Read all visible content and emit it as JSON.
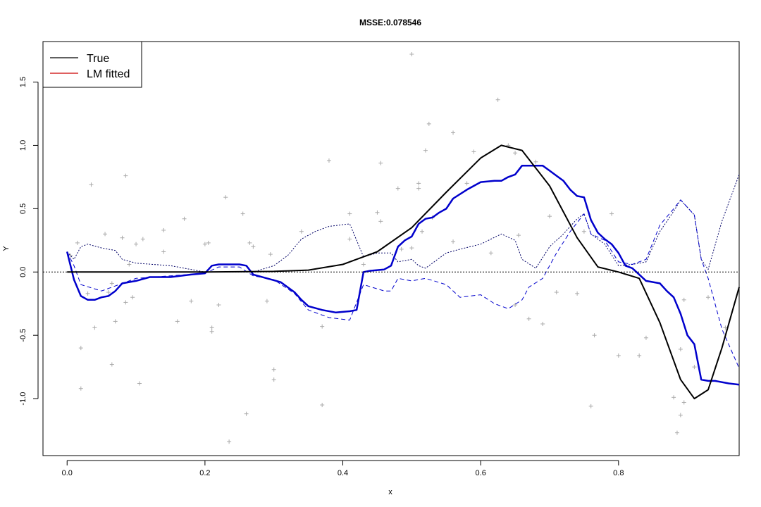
{
  "chart_data": {
    "type": "line",
    "title": "MSSE:0.078546",
    "xlabel": "x",
    "ylabel": "Y",
    "xlim": [
      -0.035,
      0.975
    ],
    "ylim": [
      -1.45,
      1.82
    ],
    "x_ticks": [
      0.0,
      0.2,
      0.4,
      0.6,
      0.8
    ],
    "x_tick_labels": [
      "0.0",
      "0.2",
      "0.4",
      "0.6",
      "0.8"
    ],
    "y_ticks": [
      -1.0,
      -0.5,
      0.0,
      0.5,
      1.0,
      1.5
    ],
    "y_tick_labels": [
      "-1.0",
      "-0.5",
      "0.0",
      "0.5",
      "1.0",
      "1.5"
    ],
    "grid": false,
    "reference_line_y": 0,
    "legend": {
      "position": "top-left",
      "entries": [
        {
          "label": "True",
          "color": "#000000"
        },
        {
          "label": "LM fitted",
          "color": "#cc0000"
        }
      ]
    },
    "series": [
      {
        "name": "True",
        "style": "solid",
        "color": "#000000",
        "width": 2,
        "points": [
          [
            0.0,
            0.0
          ],
          [
            0.1,
            0.0
          ],
          [
            0.2,
            0.0
          ],
          [
            0.3,
            0.005
          ],
          [
            0.35,
            0.015
          ],
          [
            0.4,
            0.06
          ],
          [
            0.45,
            0.16
          ],
          [
            0.5,
            0.35
          ],
          [
            0.55,
            0.63
          ],
          [
            0.6,
            0.9
          ],
          [
            0.63,
            1.0
          ],
          [
            0.66,
            0.96
          ],
          [
            0.7,
            0.68
          ],
          [
            0.74,
            0.27
          ],
          [
            0.77,
            0.04
          ],
          [
            0.8,
            0.0
          ],
          [
            0.83,
            -0.05
          ],
          [
            0.86,
            -0.4
          ],
          [
            0.89,
            -0.85
          ],
          [
            0.91,
            -1.0
          ],
          [
            0.93,
            -0.93
          ],
          [
            0.95,
            -0.6
          ],
          [
            0.975,
            -0.12
          ]
        ]
      },
      {
        "name": "",
        "style": "solid",
        "color": "#0000cc",
        "width": 2.5,
        "points": [
          [
            0.0,
            0.16
          ],
          [
            0.01,
            -0.06
          ],
          [
            0.02,
            -0.19
          ],
          [
            0.03,
            -0.22
          ],
          [
            0.04,
            -0.22
          ],
          [
            0.05,
            -0.2
          ],
          [
            0.06,
            -0.19
          ],
          [
            0.07,
            -0.15
          ],
          [
            0.08,
            -0.09
          ],
          [
            0.1,
            -0.07
          ],
          [
            0.12,
            -0.04
          ],
          [
            0.15,
            -0.04
          ],
          [
            0.18,
            -0.02
          ],
          [
            0.2,
            -0.01
          ],
          [
            0.21,
            0.05
          ],
          [
            0.22,
            0.06
          ],
          [
            0.25,
            0.06
          ],
          [
            0.26,
            0.05
          ],
          [
            0.27,
            -0.02
          ],
          [
            0.29,
            -0.05
          ],
          [
            0.31,
            -0.08
          ],
          [
            0.33,
            -0.16
          ],
          [
            0.34,
            -0.22
          ],
          [
            0.35,
            -0.27
          ],
          [
            0.37,
            -0.3
          ],
          [
            0.39,
            -0.32
          ],
          [
            0.41,
            -0.31
          ],
          [
            0.42,
            -0.3
          ],
          [
            0.43,
            0.0
          ],
          [
            0.44,
            0.01
          ],
          [
            0.46,
            0.02
          ],
          [
            0.47,
            0.05
          ],
          [
            0.48,
            0.2
          ],
          [
            0.49,
            0.25
          ],
          [
            0.5,
            0.28
          ],
          [
            0.51,
            0.38
          ],
          [
            0.52,
            0.42
          ],
          [
            0.53,
            0.43
          ],
          [
            0.54,
            0.47
          ],
          [
            0.55,
            0.5
          ],
          [
            0.56,
            0.58
          ],
          [
            0.58,
            0.65
          ],
          [
            0.6,
            0.71
          ],
          [
            0.62,
            0.72
          ],
          [
            0.63,
            0.72
          ],
          [
            0.64,
            0.75
          ],
          [
            0.65,
            0.77
          ],
          [
            0.66,
            0.84
          ],
          [
            0.67,
            0.84
          ],
          [
            0.69,
            0.84
          ],
          [
            0.7,
            0.8
          ],
          [
            0.71,
            0.76
          ],
          [
            0.72,
            0.72
          ],
          [
            0.73,
            0.65
          ],
          [
            0.74,
            0.6
          ],
          [
            0.75,
            0.59
          ],
          [
            0.76,
            0.41
          ],
          [
            0.77,
            0.31
          ],
          [
            0.78,
            0.26
          ],
          [
            0.79,
            0.22
          ],
          [
            0.8,
            0.15
          ],
          [
            0.81,
            0.05
          ],
          [
            0.82,
            0.03
          ],
          [
            0.83,
            -0.02
          ],
          [
            0.84,
            -0.07
          ],
          [
            0.86,
            -0.09
          ],
          [
            0.87,
            -0.15
          ],
          [
            0.88,
            -0.2
          ],
          [
            0.89,
            -0.33
          ],
          [
            0.9,
            -0.5
          ],
          [
            0.91,
            -0.57
          ],
          [
            0.92,
            -0.85
          ],
          [
            0.93,
            -0.86
          ],
          [
            0.94,
            -0.86
          ],
          [
            0.96,
            -0.88
          ],
          [
            0.975,
            -0.89
          ]
        ]
      },
      {
        "name": "",
        "style": "dashed",
        "color": "#0000cc",
        "width": 1,
        "points": [
          [
            0.0,
            0.16
          ],
          [
            0.01,
            0.05
          ],
          [
            0.02,
            -0.1
          ],
          [
            0.05,
            -0.15
          ],
          [
            0.1,
            -0.05
          ],
          [
            0.15,
            -0.03
          ],
          [
            0.2,
            -0.01
          ],
          [
            0.22,
            0.04
          ],
          [
            0.25,
            0.04
          ],
          [
            0.27,
            -0.03
          ],
          [
            0.3,
            -0.06
          ],
          [
            0.33,
            -0.17
          ],
          [
            0.35,
            -0.3
          ],
          [
            0.38,
            -0.36
          ],
          [
            0.41,
            -0.38
          ],
          [
            0.43,
            -0.1
          ],
          [
            0.46,
            -0.15
          ],
          [
            0.47,
            -0.15
          ],
          [
            0.48,
            -0.05
          ],
          [
            0.5,
            -0.07
          ],
          [
            0.52,
            -0.05
          ],
          [
            0.55,
            -0.1
          ],
          [
            0.57,
            -0.2
          ],
          [
            0.6,
            -0.18
          ],
          [
            0.62,
            -0.25
          ],
          [
            0.64,
            -0.29
          ],
          [
            0.66,
            -0.22
          ],
          [
            0.67,
            -0.12
          ],
          [
            0.69,
            -0.05
          ],
          [
            0.71,
            0.15
          ],
          [
            0.73,
            0.32
          ],
          [
            0.75,
            0.46
          ],
          [
            0.76,
            0.3
          ],
          [
            0.78,
            0.25
          ],
          [
            0.8,
            0.08
          ],
          [
            0.82,
            0.06
          ],
          [
            0.84,
            0.1
          ],
          [
            0.86,
            0.37
          ],
          [
            0.88,
            0.5
          ],
          [
            0.89,
            0.57
          ],
          [
            0.91,
            0.45
          ],
          [
            0.92,
            0.1
          ],
          [
            0.93,
            -0.05
          ],
          [
            0.95,
            -0.45
          ],
          [
            0.975,
            -0.76
          ]
        ]
      },
      {
        "name": "",
        "style": "dotted",
        "color": "#000066",
        "width": 1,
        "points": [
          [
            0.0,
            0.16
          ],
          [
            0.01,
            0.1
          ],
          [
            0.02,
            0.2
          ],
          [
            0.03,
            0.22
          ],
          [
            0.05,
            0.19
          ],
          [
            0.07,
            0.17
          ],
          [
            0.08,
            0.1
          ],
          [
            0.1,
            0.07
          ],
          [
            0.15,
            0.05
          ],
          [
            0.2,
            0.0
          ],
          [
            0.25,
            0.0
          ],
          [
            0.27,
            0.0
          ],
          [
            0.3,
            0.05
          ],
          [
            0.32,
            0.13
          ],
          [
            0.34,
            0.26
          ],
          [
            0.36,
            0.32
          ],
          [
            0.38,
            0.36
          ],
          [
            0.41,
            0.38
          ],
          [
            0.43,
            0.12
          ],
          [
            0.45,
            0.15
          ],
          [
            0.47,
            0.15
          ],
          [
            0.48,
            0.08
          ],
          [
            0.5,
            0.1
          ],
          [
            0.51,
            0.05
          ],
          [
            0.52,
            0.03
          ],
          [
            0.55,
            0.15
          ],
          [
            0.57,
            0.18
          ],
          [
            0.6,
            0.22
          ],
          [
            0.63,
            0.3
          ],
          [
            0.65,
            0.25
          ],
          [
            0.66,
            0.1
          ],
          [
            0.68,
            0.03
          ],
          [
            0.7,
            0.2
          ],
          [
            0.72,
            0.3
          ],
          [
            0.74,
            0.42
          ],
          [
            0.75,
            0.46
          ],
          [
            0.76,
            0.3
          ],
          [
            0.78,
            0.22
          ],
          [
            0.8,
            0.05
          ],
          [
            0.82,
            0.06
          ],
          [
            0.84,
            0.08
          ],
          [
            0.86,
            0.32
          ],
          [
            0.88,
            0.48
          ],
          [
            0.89,
            0.57
          ],
          [
            0.91,
            0.45
          ],
          [
            0.92,
            0.1
          ],
          [
            0.93,
            0.02
          ],
          [
            0.95,
            0.4
          ],
          [
            0.975,
            0.77
          ]
        ]
      }
    ],
    "scatter_points": [
      [
        0.005,
        0.13
      ],
      [
        0.015,
        0.23
      ],
      [
        0.02,
        -0.6
      ],
      [
        0.02,
        -0.92
      ],
      [
        0.03,
        -0.17
      ],
      [
        0.035,
        0.69
      ],
      [
        0.04,
        -0.44
      ],
      [
        0.055,
        0.3
      ],
      [
        0.06,
        -0.16
      ],
      [
        0.065,
        -0.73
      ],
      [
        0.065,
        -0.09
      ],
      [
        0.07,
        -0.39
      ],
      [
        0.08,
        0.27
      ],
      [
        0.085,
        -0.24
      ],
      [
        0.085,
        0.76
      ],
      [
        0.09,
        0.06
      ],
      [
        0.095,
        -0.2
      ],
      [
        0.1,
        0.22
      ],
      [
        0.105,
        -0.88
      ],
      [
        0.11,
        0.26
      ],
      [
        0.14,
        0.33
      ],
      [
        0.14,
        0.16
      ],
      [
        0.16,
        -0.39
      ],
      [
        0.17,
        0.42
      ],
      [
        0.18,
        -0.23
      ],
      [
        0.2,
        0.22
      ],
      [
        0.205,
        0.23
      ],
      [
        0.21,
        -0.44
      ],
      [
        0.21,
        -0.47
      ],
      [
        0.22,
        -0.26
      ],
      [
        0.23,
        0.59
      ],
      [
        0.235,
        -1.34
      ],
      [
        0.255,
        0.46
      ],
      [
        0.26,
        -1.12
      ],
      [
        0.265,
        0.23
      ],
      [
        0.27,
        0.2
      ],
      [
        0.29,
        -0.23
      ],
      [
        0.295,
        0.14
      ],
      [
        0.3,
        -0.77
      ],
      [
        0.3,
        -0.85
      ],
      [
        0.34,
        0.32
      ],
      [
        0.37,
        -1.05
      ],
      [
        0.37,
        -0.43
      ],
      [
        0.38,
        0.88
      ],
      [
        0.41,
        0.26
      ],
      [
        0.41,
        0.46
      ],
      [
        0.43,
        0.06
      ],
      [
        0.45,
        0.47
      ],
      [
        0.455,
        0.86
      ],
      [
        0.455,
        0.4
      ],
      [
        0.48,
        0.66
      ],
      [
        0.485,
        0.18
      ],
      [
        0.5,
        0.19
      ],
      [
        0.5,
        1.72
      ],
      [
        0.51,
        0.7
      ],
      [
        0.51,
        0.66
      ],
      [
        0.515,
        0.32
      ],
      [
        0.52,
        0.96
      ],
      [
        0.525,
        1.17
      ],
      [
        0.53,
        0.43
      ],
      [
        0.56,
        1.1
      ],
      [
        0.56,
        0.24
      ],
      [
        0.58,
        0.7
      ],
      [
        0.59,
        0.95
      ],
      [
        0.615,
        0.15
      ],
      [
        0.625,
        1.36
      ],
      [
        0.64,
        1.0
      ],
      [
        0.65,
        0.94
      ],
      [
        0.655,
        0.29
      ],
      [
        0.65,
        -0.26
      ],
      [
        0.67,
        -0.37
      ],
      [
        0.68,
        0.87
      ],
      [
        0.69,
        -0.41
      ],
      [
        0.7,
        0.44
      ],
      [
        0.71,
        -0.16
      ],
      [
        0.74,
        -0.17
      ],
      [
        0.75,
        0.32
      ],
      [
        0.76,
        -1.06
      ],
      [
        0.765,
        -0.5
      ],
      [
        0.79,
        0.46
      ],
      [
        0.8,
        -0.66
      ],
      [
        0.83,
        -0.66
      ],
      [
        0.84,
        -0.52
      ],
      [
        0.88,
        -0.99
      ],
      [
        0.885,
        -1.27
      ],
      [
        0.89,
        -1.13
      ],
      [
        0.895,
        -1.03
      ],
      [
        0.89,
        -0.61
      ],
      [
        0.895,
        -0.22
      ],
      [
        0.91,
        -0.75
      ],
      [
        0.93,
        -0.2
      ],
      [
        0.955,
        -0.44
      ]
    ]
  }
}
